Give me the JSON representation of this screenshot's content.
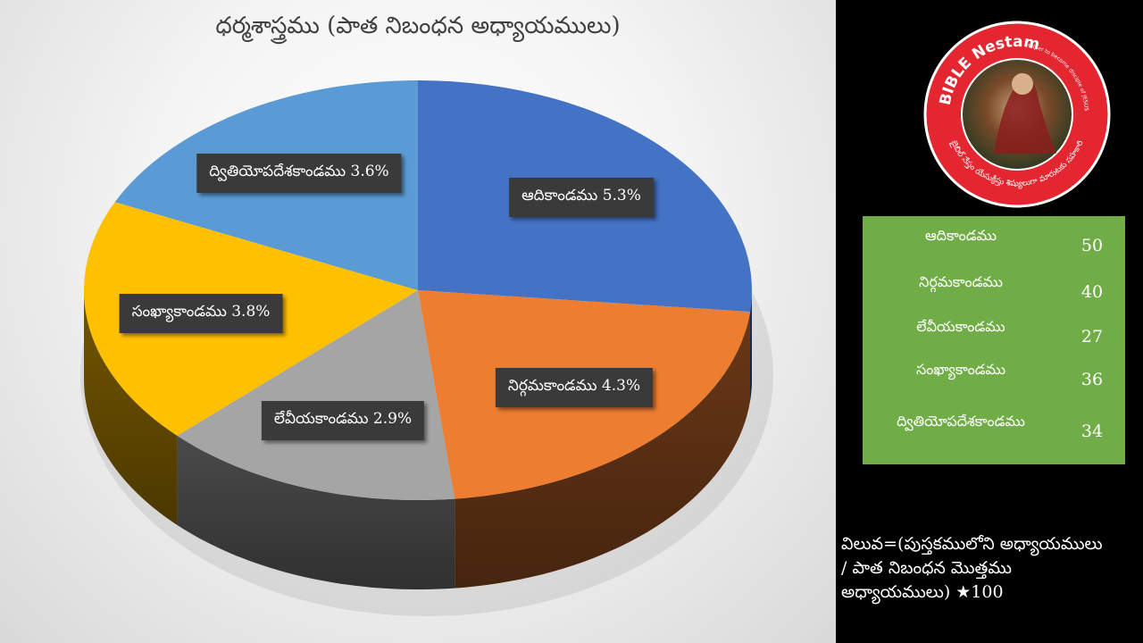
{
  "chart_data": {
    "type": "pie",
    "title": "ధర్మశాస్త్రము (పాత నిబంధన అధ్యాయములు)",
    "slices": [
      {
        "name": "ఆదికాండము",
        "value": 5.3,
        "label": "ఆదికాండము 5.3%",
        "color": "#4472c4"
      },
      {
        "name": "నిర్గమకాండము",
        "value": 4.3,
        "label": "నిర్గమకాండము 4.3%",
        "color": "#ed7d31"
      },
      {
        "name": "లేవీయకాండము",
        "value": 2.9,
        "label": "లేవీయకాండము 2.9%",
        "color": "#a5a5a5"
      },
      {
        "name": "సంఖ్యాకాండము",
        "value": 3.8,
        "label": "సంఖ్యాకాండము 3.8%",
        "color": "#ffc000"
      },
      {
        "name": "ద్వితియోపదేశకాండము",
        "value": 3.6,
        "label": "ద్వితియోపదేశకాండము 3.6%",
        "color": "#5b9bd5"
      }
    ]
  },
  "table": {
    "rows": [
      {
        "name": "ఆదికాండము",
        "value": "50"
      },
      {
        "name": "నిర్గమకాండము",
        "value": "40"
      },
      {
        "name": "లేవీయకాండము",
        "value": "27"
      },
      {
        "name": "సంఖ్యాకాండము",
        "value": "36"
      },
      {
        "name": "ద్వితియోపదేశకాండము",
        "value": "34"
      }
    ]
  },
  "formula": {
    "line1": "విలువ=(పుస్తకములోని అధ్యాయములు",
    "line2": "/ పాత నిబంధన మొత్తము",
    "line3": "అధ్యాయములు) ★100"
  },
  "logo": {
    "top_text": "BIBLE Nestam",
    "tagline": "Helper to become disciple of JESUS CHRIST",
    "bottom_text": "బైబిల్ నేస్తం యేసుక్రీస్తు శిష్యులుగా మారుటకు సహకారి",
    "color": "#d9232d"
  }
}
